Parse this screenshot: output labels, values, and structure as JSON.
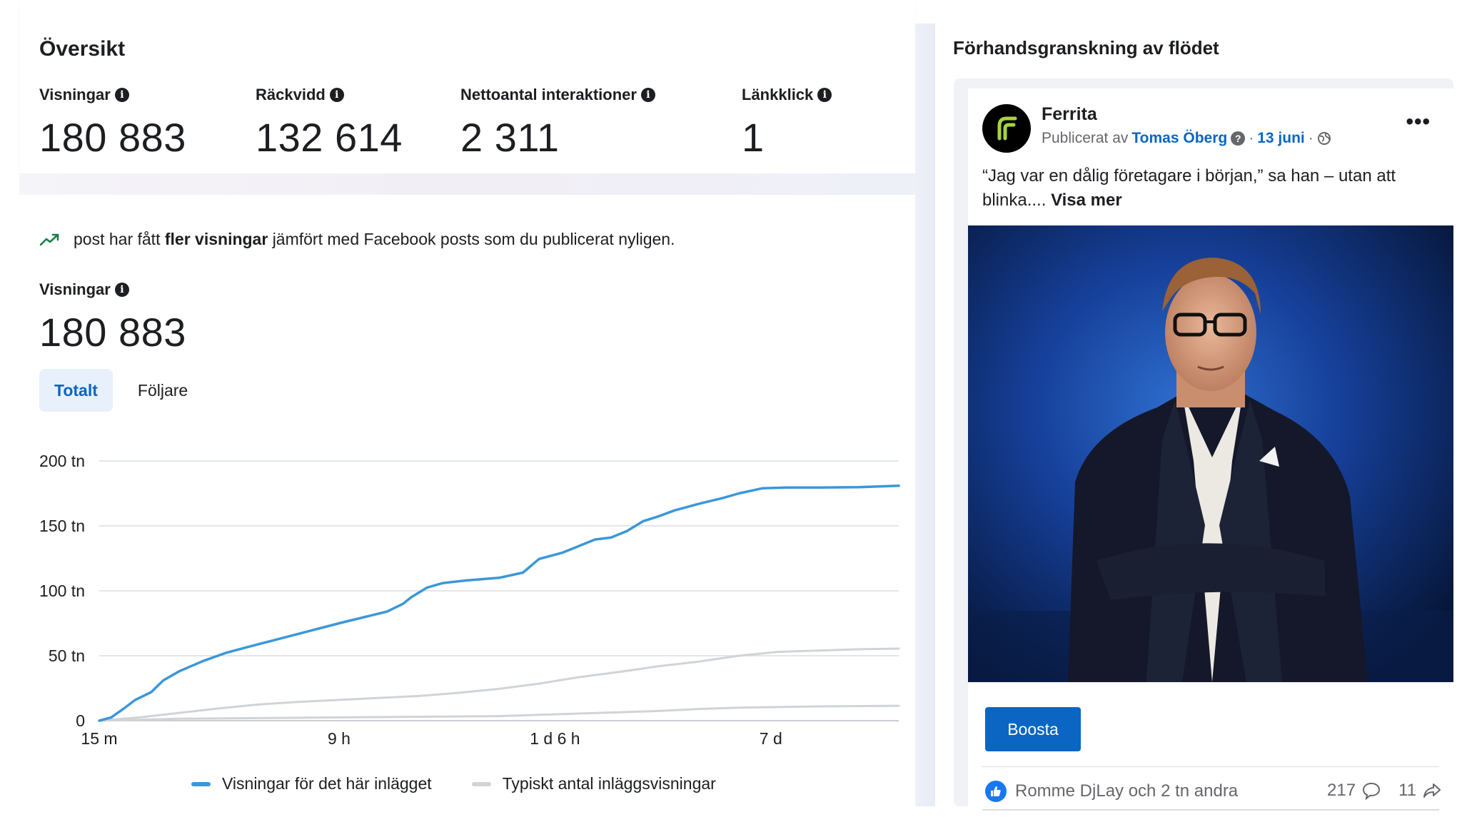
{
  "overview": {
    "title": "Översikt",
    "metrics": [
      {
        "label": "Visningar",
        "value": "180 883"
      },
      {
        "label": "Räckvidd",
        "value": "132 614"
      },
      {
        "label": "Nettoantal interaktioner",
        "value": "2 311"
      },
      {
        "label": "Länkklick",
        "value": "1"
      }
    ]
  },
  "insight": {
    "prefix": "post har fått",
    "bold": "fler visningar",
    "suffix": "jämfört med Facebook posts som du publicerat nyligen."
  },
  "views": {
    "label": "Visningar",
    "value": "180 883"
  },
  "tabs": [
    {
      "label": "Totalt",
      "active": true
    },
    {
      "label": "Följare",
      "active": false
    }
  ],
  "chart_data": {
    "type": "line",
    "y_tick_labels": [
      "0",
      "50 tn",
      "100 tn",
      "150 tn",
      "200 tn"
    ],
    "y_ticks": [
      0,
      50000,
      100000,
      150000,
      200000
    ],
    "ylim": [
      0,
      200000
    ],
    "x_tick_labels": [
      "15 m",
      "9 h",
      "1 d 6 h",
      "7 d"
    ],
    "x_tick_positions": [
      0.0,
      0.3,
      0.57,
      0.84
    ],
    "grid": true,
    "legend_position": "bottom",
    "series": [
      {
        "name": "Visningar för det här inlägget",
        "color": "#3b97d9",
        "points": [
          [
            0.0,
            0
          ],
          [
            0.015,
            2500
          ],
          [
            0.03,
            9000
          ],
          [
            0.045,
            16000
          ],
          [
            0.065,
            22000
          ],
          [
            0.08,
            31000
          ],
          [
            0.1,
            38000
          ],
          [
            0.13,
            46000
          ],
          [
            0.16,
            52500
          ],
          [
            0.2,
            59000
          ],
          [
            0.25,
            67000
          ],
          [
            0.3,
            75000
          ],
          [
            0.34,
            81000
          ],
          [
            0.36,
            84000
          ],
          [
            0.38,
            90000
          ],
          [
            0.39,
            95000
          ],
          [
            0.41,
            102500
          ],
          [
            0.43,
            106000
          ],
          [
            0.46,
            108000
          ],
          [
            0.5,
            110000
          ],
          [
            0.53,
            114000
          ],
          [
            0.55,
            124500
          ],
          [
            0.58,
            129500
          ],
          [
            0.6,
            134500
          ],
          [
            0.62,
            139500
          ],
          [
            0.64,
            141000
          ],
          [
            0.66,
            146000
          ],
          [
            0.68,
            153500
          ],
          [
            0.7,
            157500
          ],
          [
            0.72,
            162000
          ],
          [
            0.75,
            167000
          ],
          [
            0.78,
            171500
          ],
          [
            0.8,
            175000
          ],
          [
            0.83,
            179000
          ],
          [
            0.86,
            179500
          ],
          [
            0.9,
            179500
          ],
          [
            0.95,
            179800
          ],
          [
            1.0,
            180883
          ]
        ]
      },
      {
        "name": "Typiskt antal inläggsvisningar",
        "color": "#d0d3d8",
        "points": [
          [
            0.0,
            0
          ],
          [
            0.05,
            2500
          ],
          [
            0.1,
            6000
          ],
          [
            0.15,
            9500
          ],
          [
            0.2,
            12500
          ],
          [
            0.25,
            14500
          ],
          [
            0.3,
            16000
          ],
          [
            0.35,
            17500
          ],
          [
            0.4,
            19000
          ],
          [
            0.45,
            21500
          ],
          [
            0.5,
            24500
          ],
          [
            0.55,
            28500
          ],
          [
            0.6,
            33500
          ],
          [
            0.65,
            37500
          ],
          [
            0.7,
            42000
          ],
          [
            0.75,
            45500
          ],
          [
            0.8,
            50000
          ],
          [
            0.85,
            53000
          ],
          [
            0.9,
            54000
          ],
          [
            0.95,
            55000
          ],
          [
            1.0,
            55500
          ]
        ]
      },
      {
        "name": "",
        "color": "#d0d3d8",
        "points": [
          [
            0.0,
            0
          ],
          [
            0.1,
            1500
          ],
          [
            0.2,
            2000
          ],
          [
            0.3,
            2500
          ],
          [
            0.4,
            3000
          ],
          [
            0.5,
            3500
          ],
          [
            0.6,
            5500
          ],
          [
            0.7,
            7500
          ],
          [
            0.75,
            9000
          ],
          [
            0.8,
            10000
          ],
          [
            0.9,
            11000
          ],
          [
            1.0,
            11500
          ]
        ]
      }
    ]
  },
  "legend": [
    {
      "label": "Visningar för det här inlägget",
      "color": "#3b97d9"
    },
    {
      "label": "Typiskt antal inläggsvisningar",
      "color": "#d0d3d8"
    }
  ],
  "preview": {
    "title": "Förhandsgranskning av flödet",
    "page_name": "Ferrita",
    "published_by": "Publicerat av",
    "author": "Tomas Öberg",
    "date": "13 juni",
    "separator": "·",
    "caption": "“Jag var en dålig företagare i början,” sa han – utan att blinka....",
    "see_more": "Visa mer",
    "boost_label": "Boosta",
    "reactions_text": "Romme DjLay och 2 tn andra",
    "comments_count": "217",
    "shares_count": "11",
    "icons": [
      "info-icon",
      "trend-up-icon",
      "question-icon",
      "globe-icon",
      "more-icon",
      "like-icon",
      "comment-icon",
      "share-icon"
    ]
  }
}
